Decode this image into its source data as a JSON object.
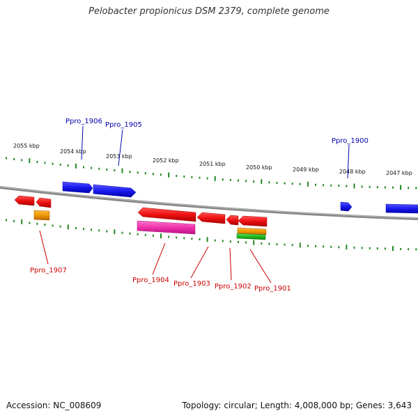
{
  "title": "Pelobacter propionicus DSM 2379, complete genome",
  "footer": {
    "accession": "Accession: NC_008609",
    "stats": "Topology: circular; Length: 4,008,000 bp; Genes: 3,643"
  },
  "colors": {
    "forward_gene": "#1a1aee",
    "reverse_gene": "#ee1111",
    "rrna": "#ee9900",
    "trna": "#22bb22",
    "misc": "#ee33aa",
    "ticks": "#228822",
    "backbone": "#888888",
    "label_forward": "#0000aa",
    "label_reverse": "#cc0000"
  },
  "scale": {
    "ticks": [
      {
        "label": "2055 kbp"
      },
      {
        "label": "2054 kbp"
      },
      {
        "label": "2053 kbp"
      },
      {
        "label": "2052 kbp"
      },
      {
        "label": "2051 kbp"
      },
      {
        "label": "2050 kbp"
      },
      {
        "label": "2049 kbp"
      },
      {
        "label": "2048 kbp"
      },
      {
        "label": "2047 kbp"
      }
    ]
  },
  "gene_labels": {
    "forward": [
      "Ppro_1906",
      "Ppro_1905",
      "Ppro_1900"
    ],
    "reverse": [
      "Ppro_1907",
      "Ppro_1904",
      "Ppro_1903",
      "Ppro_1902",
      "Ppro_1901"
    ]
  }
}
